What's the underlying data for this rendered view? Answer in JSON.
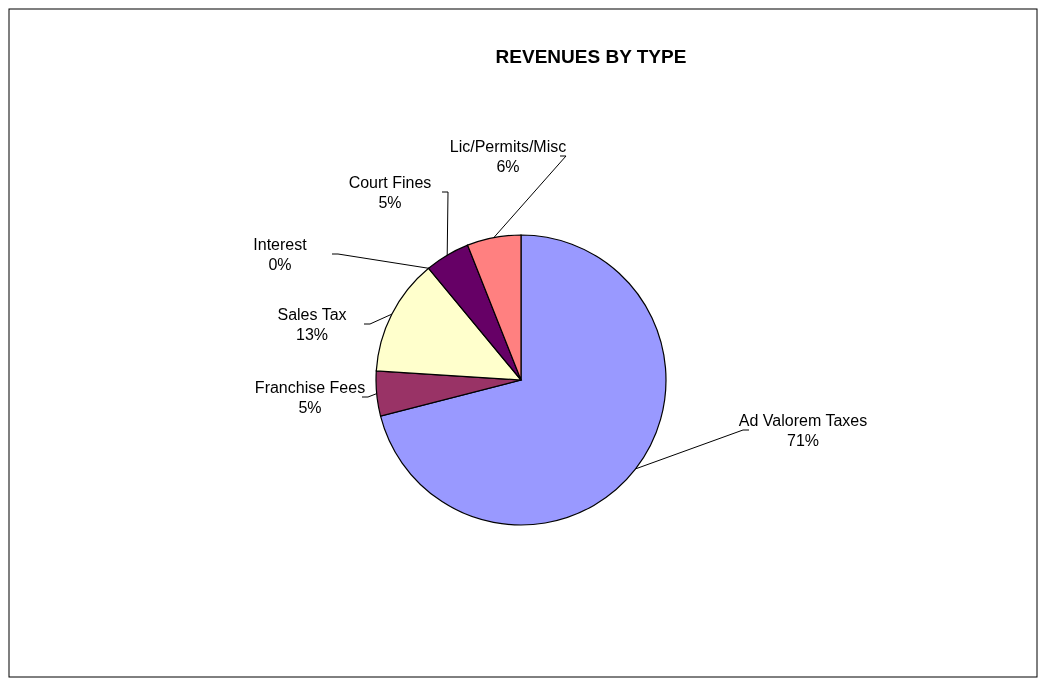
{
  "chart_data": {
    "type": "pie",
    "title": "REVENUES BY TYPE",
    "categories": [
      "Ad Valorem Taxes",
      "Franchise Fees",
      "Sales Tax",
      "Interest",
      "Court Fines",
      "Lic/Permits/Misc"
    ],
    "values": [
      71,
      5,
      13,
      0,
      5,
      6
    ],
    "colors": [
      "#9999ff",
      "#993366",
      "#ffffcc",
      null,
      "#660066",
      "#ff8080"
    ],
    "value_labels": [
      "71%",
      "5%",
      "13%",
      "0%",
      "5%",
      "6%"
    ]
  }
}
